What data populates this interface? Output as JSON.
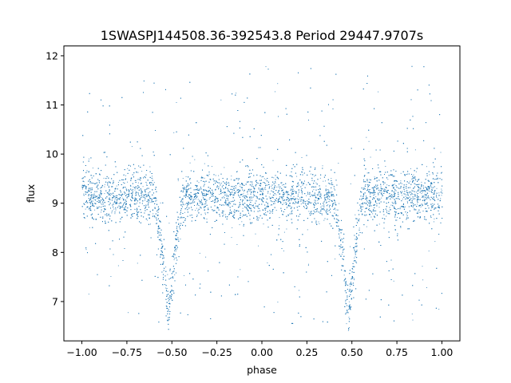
{
  "chart_data": {
    "type": "scatter",
    "title": "1SWASPJ144508.36-392543.8 Period 29447.9707s",
    "xlabel": "phase",
    "ylabel": "flux",
    "xlim": [
      -1.1,
      1.1
    ],
    "ylim": [
      6.2,
      12.2
    ],
    "x_ticks": [
      -1.0,
      -0.75,
      -0.5,
      -0.25,
      0.0,
      0.25,
      0.5,
      0.75,
      1.0
    ],
    "x_tick_labels": [
      "−1.00",
      "−0.75",
      "−0.50",
      "−0.25",
      "0.00",
      "0.25",
      "0.50",
      "0.75",
      "1.00"
    ],
    "y_ticks": [
      7,
      8,
      9,
      10,
      11,
      12
    ],
    "y_tick_labels": [
      "7",
      "8",
      "9",
      "10",
      "11",
      "12"
    ],
    "grid": false,
    "legend": "none",
    "point_color": "#1f77b4",
    "series": [
      {
        "x_range": [
          -1.0,
          1.0
        ],
        "baseline_flux": 9.15,
        "baseline_spread": 0.25,
        "eclipses": [
          {
            "phase": -0.52,
            "min_flux": 6.7
          },
          {
            "phase": 0.48,
            "min_flux": 6.7
          }
        ],
        "outlier_flux_range": [
          6.5,
          11.8
        ]
      }
    ]
  }
}
